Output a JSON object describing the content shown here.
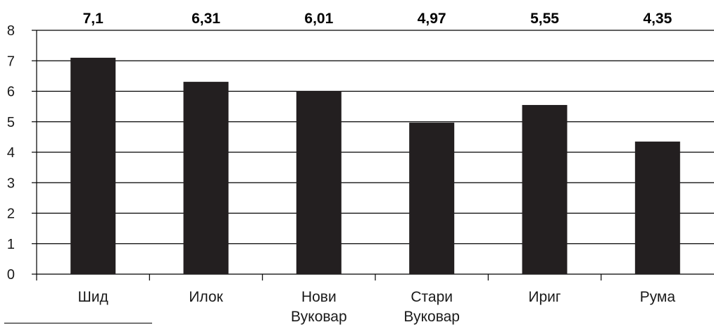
{
  "chart_data": {
    "type": "bar",
    "categories": [
      [
        "Шид"
      ],
      [
        "Илок"
      ],
      [
        "Нови",
        "Вуковар"
      ],
      [
        "Стари",
        "Вуковар"
      ],
      [
        "Ириг"
      ],
      [
        "Рума"
      ]
    ],
    "values": [
      7.1,
      6.31,
      6.01,
      4.97,
      5.55,
      4.35
    ],
    "data_labels": [
      "7,1",
      "6,31",
      "6,01",
      "4,97",
      "5,55",
      "4,35"
    ],
    "y_ticks": [
      "0",
      "1",
      "2",
      "3",
      "4",
      "5",
      "6",
      "7",
      "8"
    ],
    "ylim": [
      0,
      8
    ],
    "grid": true,
    "title": "",
    "xlabel": "",
    "ylabel": "",
    "colors": {
      "bar": "#231f20",
      "grid": "#000000"
    }
  }
}
